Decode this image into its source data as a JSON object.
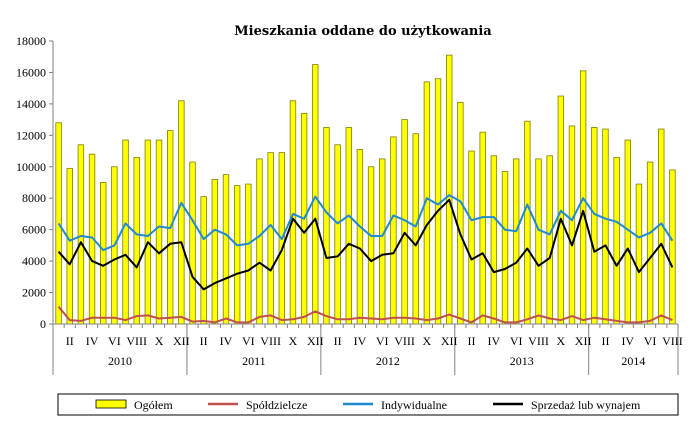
{
  "chart_data": {
    "type": "bar",
    "title": "Mieszkania oddane do użytkowania",
    "xlabel": "",
    "ylabel": "",
    "ylim": [
      0,
      18000
    ],
    "yticks": [
      0,
      2000,
      4000,
      6000,
      8000,
      10000,
      12000,
      14000,
      16000,
      18000
    ],
    "years": [
      "2010",
      "2011",
      "2012",
      "2013",
      "2014"
    ],
    "month_tick_labels": [
      "II",
      "IV",
      "VI",
      "VIII",
      "X",
      "XII"
    ],
    "last_tick_label": "VIII",
    "legend_position": "bottom",
    "colors": {
      "bar_fill": "#ffff00",
      "bar_stroke": "#7f7f00",
      "spoldzielcze": "#c0504d",
      "indywidualne": "#1f8ad0",
      "sprzedaz": "#000000",
      "axis": "#808080"
    },
    "series": [
      {
        "name": "Ogółem",
        "kind": "bar",
        "values": [
          12800,
          9900,
          11400,
          10800,
          9000,
          10000,
          11700,
          10600,
          11700,
          11700,
          12300,
          14200,
          10300,
          8100,
          9200,
          9500,
          8800,
          8900,
          10500,
          10900,
          10900,
          14200,
          13400,
          16500,
          12500,
          11400,
          12500,
          11100,
          10000,
          10500,
          11900,
          13000,
          12100,
          15400,
          15600,
          17100,
          14100,
          11000,
          12200,
          10700,
          9700,
          10500,
          12900,
          10500,
          10700,
          14500,
          12600,
          16100,
          12500,
          12400,
          10600,
          11700,
          8900,
          10300,
          12400,
          9800
        ]
      },
      {
        "name": "Spółdzielcze",
        "kind": "line",
        "values": [
          1100,
          250,
          200,
          400,
          400,
          400,
          250,
          500,
          550,
          350,
          400,
          450,
          150,
          200,
          100,
          350,
          100,
          100,
          450,
          550,
          250,
          300,
          450,
          800,
          500,
          300,
          300,
          400,
          350,
          300,
          400,
          400,
          350,
          250,
          350,
          600,
          350,
          100,
          550,
          350,
          100,
          100,
          300,
          550,
          350,
          250,
          500,
          250,
          400,
          300,
          200,
          100,
          100,
          200,
          550,
          250
        ]
      },
      {
        "name": "Indywidualne",
        "kind": "line",
        "values": [
          6400,
          5300,
          5600,
          5500,
          4700,
          5000,
          6400,
          5700,
          5600,
          6200,
          6100,
          7700,
          6600,
          5400,
          6000,
          5700,
          5000,
          5100,
          5600,
          6300,
          5400,
          7000,
          6700,
          8100,
          7100,
          6400,
          6900,
          6200,
          5600,
          5600,
          6900,
          6600,
          6200,
          8000,
          7600,
          8200,
          7800,
          6600,
          6800,
          6800,
          6000,
          5900,
          7600,
          6000,
          5700,
          7200,
          6600,
          8000,
          7000,
          6700,
          6500,
          6000,
          5500,
          5800,
          6400,
          5300
        ]
      },
      {
        "name": "Sprzedaż lub wynajem",
        "kind": "line",
        "values": [
          4600,
          3800,
          5200,
          4000,
          3700,
          4100,
          4400,
          3600,
          5200,
          4500,
          5100,
          5200,
          3000,
          2200,
          2600,
          2900,
          3200,
          3400,
          3900,
          3400,
          4700,
          6700,
          5800,
          6700,
          4200,
          4300,
          5100,
          4800,
          4000,
          4400,
          4500,
          5800,
          5000,
          6300,
          7200,
          7900,
          5700,
          4100,
          4500,
          3300,
          3500,
          3900,
          4800,
          3700,
          4200,
          6700,
          5000,
          7200,
          4600,
          5000,
          3700,
          4800,
          3300,
          4200,
          5100,
          3600
        ]
      }
    ]
  }
}
